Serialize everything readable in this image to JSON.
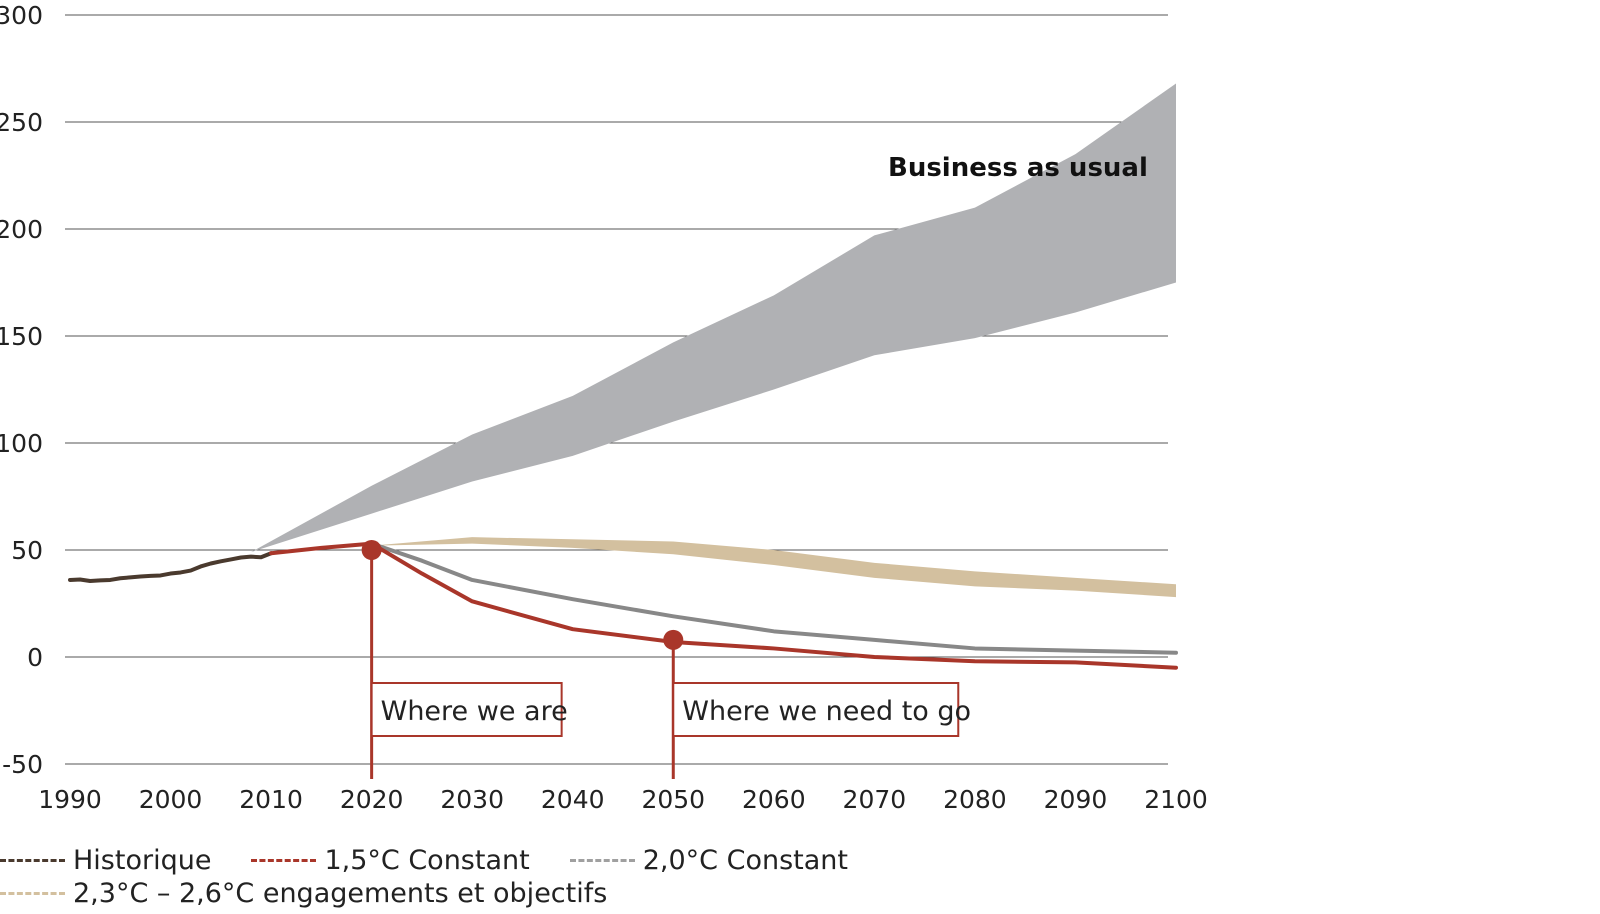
{
  "chart_data": {
    "type": "area",
    "title": "",
    "xlabel": "",
    "ylabel": "",
    "xlim": [
      1990,
      2100
    ],
    "ylim": [
      -50,
      300
    ],
    "x_ticks": [
      "1990",
      "2000",
      "2010",
      "2020",
      "2030",
      "2040",
      "2050",
      "2060",
      "2070",
      "2080",
      "2090",
      "2100"
    ],
    "y_ticks": [
      "300",
      "250",
      "200",
      "150",
      "100",
      "50",
      "0",
      "-50"
    ],
    "grid": true,
    "colors": {
      "historique": "#4a3a2e",
      "c15": "#a9362a",
      "c20": "#888888",
      "c23": "#d3c09f",
      "bau": "#b0b1b4"
    },
    "bau_band": {
      "label": "Business as usual",
      "x": [
        2008,
        2020,
        2030,
        2040,
        2050,
        2060,
        2070,
        2080,
        2090,
        2100
      ],
      "upper": [
        49,
        80,
        104,
        122,
        147,
        169,
        197,
        210,
        235,
        268
      ],
      "lower": [
        49,
        67,
        82,
        94,
        110,
        125,
        141,
        149,
        161,
        175
      ]
    },
    "range_band": {
      "name": "2,3°C – 2,6°C engagements et objectifs",
      "x": [
        2020,
        2030,
        2040,
        2050,
        2060,
        2070,
        2080,
        2090,
        2100
      ],
      "upper": [
        52,
        56,
        55,
        54,
        50,
        44,
        40,
        37,
        34
      ],
      "lower": [
        52,
        53,
        51,
        48,
        43,
        37,
        33,
        31,
        28
      ]
    },
    "series": [
      {
        "name": "Historique",
        "x": [
          1990,
          1991,
          1992,
          1993,
          1994,
          1995,
          1996,
          1997,
          1998,
          1999,
          2000,
          2001,
          2002,
          2003,
          2004,
          2005,
          2006,
          2007,
          2008,
          2009,
          2010
        ],
        "values": [
          36,
          36.2,
          35.5,
          35.8,
          36,
          36.8,
          37.2,
          37.6,
          37.9,
          38.1,
          39,
          39.5,
          40.4,
          42.3,
          43.7,
          44.7,
          45.6,
          46.5,
          46.9,
          46.6,
          48.5
        ]
      },
      {
        "name": "1,5°C Constant",
        "x": [
          2010,
          2015,
          2020,
          2025,
          2030,
          2040,
          2050,
          2060,
          2070,
          2080,
          2090,
          2100
        ],
        "values": [
          48.5,
          51,
          53,
          39,
          26,
          13,
          7,
          4,
          0,
          -2,
          -2.5,
          -5
        ]
      },
      {
        "name": "2,0°C Constant",
        "x": [
          2020,
          2025,
          2030,
          2040,
          2050,
          2060,
          2070,
          2080,
          2090,
          2100
        ],
        "values": [
          53,
          45,
          36,
          27,
          19,
          12,
          8,
          4,
          3,
          2
        ]
      }
    ],
    "annotations": [
      {
        "label": "Where we are",
        "x": 2020,
        "y": 50
      },
      {
        "label": "Where we need to go",
        "x": 2050,
        "y": 8
      }
    ],
    "legend": {
      "placement": "bottom-left",
      "items": [
        "Historique",
        "1,5°C Constant",
        "2,0°C Constant",
        "2,3°C – 2,6°C engagements et objectifs"
      ]
    }
  }
}
